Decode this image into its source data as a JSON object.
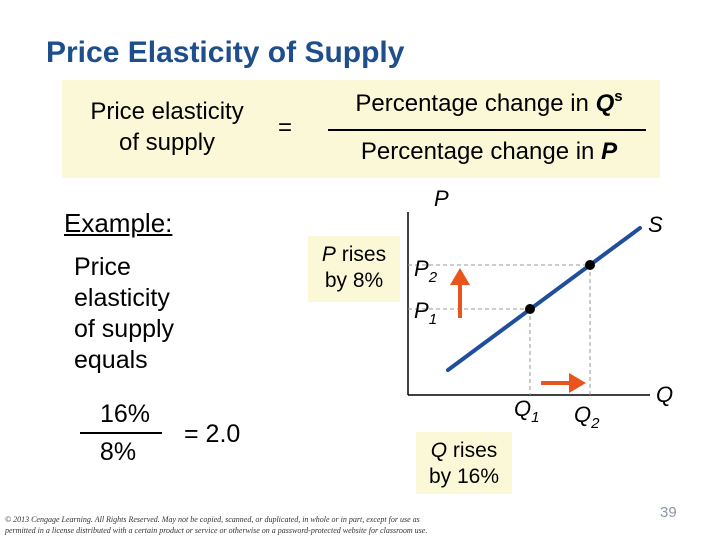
{
  "slide": {
    "title": "Price Elasticity of Supply",
    "page_number": "39",
    "copyright": "© 2013 Cengage Learning. All Rights Reserved. May not be copied, scanned, or duplicated, in whole or in part, except for use as permitted in a license distributed with a certain product or service or otherwise on a password-protected website for classroom use."
  },
  "formula": {
    "left_line1": "Price elasticity",
    "left_line2": "of supply",
    "equals": "=",
    "numerator": "Percentage change in ",
    "numerator_var": "Q",
    "numerator_sup": "s",
    "denominator": "Percentage change in ",
    "denominator_var": "P"
  },
  "example": {
    "heading": "Example:",
    "line1": "Price",
    "line2": "elasticity",
    "line3": "of supply",
    "line4": "equals",
    "numerator": "16%",
    "denominator": "8%",
    "result": "= 2.0"
  },
  "diagram": {
    "y_axis_label": "P",
    "x_axis_label": "Q",
    "supply_label": "S",
    "p_rises_var": "P",
    "p_rises_text": " rises",
    "p_rises_line2": "by 8%",
    "q_rises_var": "Q",
    "q_rises_text": " rises",
    "q_rises_line2": "by 16%",
    "p2_label": "P",
    "p2_sub": "2",
    "p1_label": "P",
    "p1_sub": "1",
    "q1_label": "Q",
    "q1_sub": "1",
    "q2_label": "Q",
    "q2_sub": "2",
    "colors": {
      "supply_curve": "#1f4e9c",
      "arrows": "#e8541c",
      "guides": "#999999",
      "title": "#1f4e8c",
      "highlight_box": "#fbf8d8"
    }
  }
}
